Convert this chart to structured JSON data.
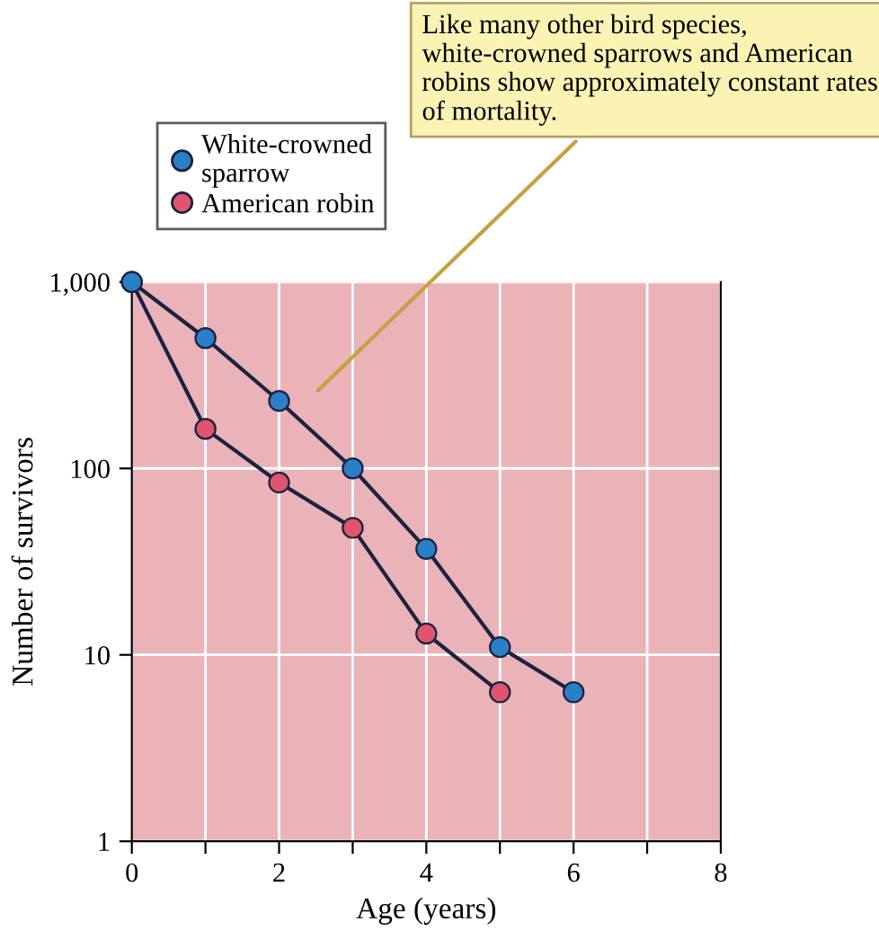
{
  "chart_data": {
    "type": "line",
    "xlabel": "Age (years)",
    "ylabel": "Number of survivors",
    "x": [
      0,
      1,
      2,
      3,
      4,
      5,
      6
    ],
    "series": [
      {
        "name": "White-crowned\nsparrow",
        "color": "#2a7fc8",
        "values": [
          1000,
          500,
          230,
          100,
          37,
          11,
          6.3
        ]
      },
      {
        "name": "American robin",
        "color": "#e0546e",
        "values": [
          1000,
          163,
          84,
          48,
          13,
          6.3,
          null
        ]
      }
    ],
    "log": "y",
    "xlim": [
      0,
      8
    ],
    "ylim": [
      1,
      1000
    ],
    "xticks": [
      0,
      {
        "value": 1,
        "label": null
      },
      2,
      {
        "value": 3,
        "label": null
      },
      4,
      {
        "value": 5,
        "label": null
      },
      6,
      {
        "value": 7,
        "label": null
      },
      8
    ],
    "yticks": [
      1,
      10,
      100,
      {
        "value": 1000,
        "label": "1,000"
      }
    ],
    "grid": true,
    "legend": "top left",
    "marker": "circle",
    "line_style": "solid",
    "annotations": [
      "Like many other bird species, white-crowned sparrows and American robins show approximately constant rates of mortality."
    ]
  }
}
